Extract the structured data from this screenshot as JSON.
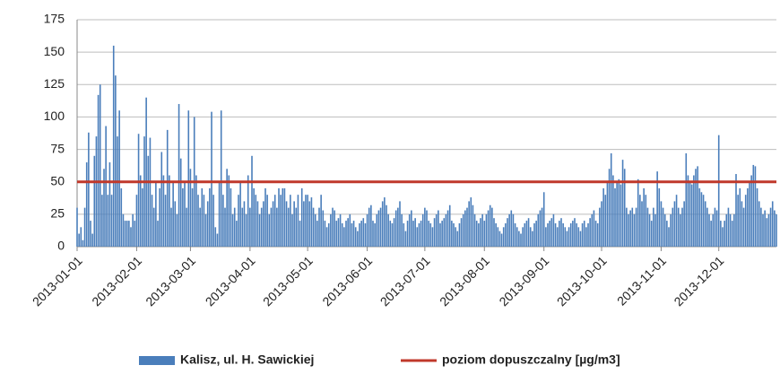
{
  "chart_data": {
    "type": "bar",
    "series": [
      {
        "name": "Kalisz, ul. H. Sawickiej",
        "color": "#4a7ebb",
        "values": [
          30,
          10,
          15,
          5,
          30,
          65,
          88,
          20,
          10,
          70,
          85,
          117,
          125,
          40,
          60,
          93,
          40,
          65,
          40,
          155,
          132,
          85,
          105,
          45,
          25,
          20,
          20,
          20,
          15,
          25,
          20,
          40,
          87,
          55,
          45,
          85,
          115,
          70,
          84,
          40,
          30,
          50,
          20,
          45,
          73,
          55,
          40,
          90,
          55,
          30,
          50,
          35,
          25,
          110,
          68,
          45,
          50,
          30,
          105,
          60,
          45,
          100,
          55,
          40,
          30,
          45,
          40,
          25,
          35,
          45,
          104,
          40,
          15,
          10,
          50,
          105,
          40,
          30,
          60,
          55,
          45,
          25,
          30,
          20,
          40,
          50,
          30,
          35,
          25,
          55,
          30,
          70,
          45,
          40,
          35,
          25,
          30,
          35,
          45,
          40,
          25,
          30,
          35,
          40,
          30,
          45,
          40,
          45,
          45,
          35,
          30,
          40,
          25,
          35,
          30,
          40,
          20,
          45,
          35,
          40,
          40,
          35,
          38,
          30,
          25,
          20,
          30,
          40,
          28,
          20,
          15,
          18,
          25,
          30,
          28,
          20,
          22,
          25,
          18,
          15,
          20,
          22,
          25,
          18,
          20,
          15,
          12,
          18,
          20,
          22,
          18,
          25,
          30,
          32,
          20,
          18,
          25,
          28,
          30,
          35,
          38,
          32,
          25,
          20,
          18,
          22,
          28,
          30,
          35,
          25,
          18,
          12,
          20,
          25,
          28,
          20,
          22,
          15,
          18,
          20,
          25,
          30,
          28,
          20,
          18,
          15,
          22,
          25,
          28,
          18,
          20,
          22,
          25,
          28,
          32,
          20,
          18,
          15,
          12,
          18,
          22,
          25,
          28,
          30,
          35,
          38,
          32,
          25,
          20,
          18,
          22,
          25,
          20,
          25,
          28,
          32,
          30,
          22,
          18,
          15,
          12,
          10,
          15,
          18,
          22,
          25,
          28,
          25,
          18,
          15,
          12,
          10,
          15,
          18,
          20,
          22,
          15,
          12,
          18,
          20,
          25,
          28,
          30,
          42,
          15,
          18,
          20,
          22,
          25,
          18,
          15,
          20,
          22,
          18,
          15,
          12,
          15,
          18,
          20,
          22,
          18,
          15,
          12,
          18,
          20,
          15,
          18,
          22,
          25,
          28,
          20,
          18,
          30,
          35,
          45,
          40,
          50,
          60,
          72,
          55,
          45,
          50,
          52,
          48,
          67,
          60,
          30,
          25,
          28,
          30,
          25,
          30,
          52,
          40,
          35,
          45,
          40,
          30,
          25,
          20,
          30,
          25,
          58,
          45,
          35,
          30,
          25,
          20,
          15,
          25,
          30,
          35,
          40,
          30,
          25,
          30,
          35,
          72,
          55,
          50,
          48,
          55,
          60,
          62,
          45,
          42,
          40,
          35,
          30,
          25,
          20,
          25,
          30,
          28,
          86,
          20,
          15,
          20,
          25,
          30,
          25,
          20,
          25,
          56,
          40,
          45,
          35,
          30,
          40,
          45,
          50,
          55,
          63,
          62,
          45,
          35,
          30,
          25,
          28,
          22,
          25,
          30,
          35,
          28,
          25
        ]
      },
      {
        "name": "poziom dopuszczalny [µg/m3]",
        "color": "#c0392b",
        "type": "hline",
        "value": 50
      }
    ],
    "x": [
      "2013-01-01",
      "2013-01-02",
      "2013-01-03",
      "2013-01-04",
      "2013-01-05",
      "2013-01-06",
      "2013-01-07",
      "2013-01-08",
      "2013-01-09",
      "2013-01-10",
      "2013-01-11",
      "2013-01-12",
      "2013-01-13",
      "2013-01-14",
      "2013-01-15",
      "2013-01-16",
      "2013-01-17",
      "2013-01-18",
      "2013-01-19",
      "2013-01-20",
      "2013-01-21",
      "2013-01-22",
      "2013-01-23",
      "2013-01-24",
      "2013-01-25",
      "2013-01-26",
      "2013-01-27",
      "2013-01-28",
      "2013-01-29",
      "2013-01-30",
      "2013-01-31",
      "2013-02-01",
      "2013-02-02",
      "2013-02-03",
      "2013-02-04",
      "2013-02-05",
      "2013-02-06",
      "2013-02-07",
      "2013-02-08",
      "2013-02-09",
      "2013-02-10",
      "2013-02-11",
      "2013-02-12",
      "2013-02-13",
      "2013-02-14",
      "2013-02-15",
      "2013-02-16",
      "2013-02-17",
      "2013-02-18",
      "2013-02-19",
      "2013-02-20",
      "2013-02-21",
      "2013-02-22",
      "2013-02-23",
      "2013-02-24",
      "2013-02-25",
      "2013-02-26",
      "2013-02-27",
      "2013-02-28",
      "2013-03-01",
      "2013-03-02",
      "2013-03-03",
      "2013-03-04",
      "2013-03-05",
      "2013-03-06",
      "2013-03-07",
      "2013-03-08",
      "2013-03-09",
      "2013-03-10",
      "2013-03-11",
      "2013-03-12",
      "2013-03-13",
      "2013-03-14",
      "2013-03-15",
      "2013-03-16",
      "2013-03-17",
      "2013-03-18",
      "2013-03-19",
      "2013-03-20",
      "2013-03-21",
      "2013-03-22",
      "2013-03-23",
      "2013-03-24",
      "2013-03-25",
      "2013-03-26",
      "2013-03-27",
      "2013-03-28",
      "2013-03-29",
      "2013-03-30",
      "2013-03-31",
      "2013-04-01",
      "2013-04-02",
      "2013-04-03",
      "2013-04-04",
      "2013-04-05",
      "2013-04-06",
      "2013-04-07",
      "2013-04-08",
      "2013-04-09",
      "2013-04-10",
      "2013-04-11",
      "2013-04-12",
      "2013-04-13",
      "2013-04-14",
      "2013-04-15",
      "2013-04-16",
      "2013-04-17",
      "2013-04-18",
      "2013-04-19",
      "2013-04-20",
      "2013-04-21",
      "2013-04-22",
      "2013-04-23",
      "2013-04-24",
      "2013-04-25",
      "2013-04-26",
      "2013-04-27",
      "2013-04-28",
      "2013-04-29",
      "2013-04-30",
      "2013-05-01",
      "2013-05-02",
      "2013-05-03",
      "2013-05-04",
      "2013-05-05",
      "2013-05-06",
      "2013-05-07",
      "2013-05-08",
      "2013-05-09",
      "2013-05-10",
      "2013-05-11",
      "2013-05-12",
      "2013-05-13",
      "2013-05-14",
      "2013-05-15",
      "2013-05-16",
      "2013-05-17",
      "2013-05-18",
      "2013-05-19",
      "2013-05-20",
      "2013-05-21",
      "2013-05-22",
      "2013-05-23",
      "2013-05-24",
      "2013-05-25",
      "2013-05-26",
      "2013-05-27",
      "2013-05-28",
      "2013-05-29",
      "2013-05-30",
      "2013-05-31",
      "2013-06-01",
      "2013-06-02",
      "2013-06-03",
      "2013-06-04",
      "2013-06-05",
      "2013-06-06",
      "2013-06-07",
      "2013-06-08",
      "2013-06-09",
      "2013-06-10",
      "2013-06-11",
      "2013-06-12",
      "2013-06-13",
      "2013-06-14",
      "2013-06-15",
      "2013-06-16",
      "2013-06-17",
      "2013-06-18",
      "2013-06-19",
      "2013-06-20",
      "2013-06-21",
      "2013-06-22",
      "2013-06-23",
      "2013-06-24",
      "2013-06-25",
      "2013-06-26",
      "2013-06-27",
      "2013-06-28",
      "2013-06-29",
      "2013-06-30",
      "2013-07-01",
      "2013-07-02",
      "2013-07-03",
      "2013-07-04",
      "2013-07-05",
      "2013-07-06",
      "2013-07-07",
      "2013-07-08",
      "2013-07-09",
      "2013-07-10",
      "2013-07-11",
      "2013-07-12",
      "2013-07-13",
      "2013-07-14",
      "2013-07-15",
      "2013-07-16",
      "2013-07-17",
      "2013-07-18",
      "2013-07-19",
      "2013-07-20",
      "2013-07-21",
      "2013-07-22",
      "2013-07-23",
      "2013-07-24",
      "2013-07-25",
      "2013-07-26",
      "2013-07-27",
      "2013-07-28",
      "2013-07-29",
      "2013-07-30",
      "2013-07-31",
      "2013-08-01",
      "2013-08-02",
      "2013-08-03",
      "2013-08-04",
      "2013-08-05",
      "2013-08-06",
      "2013-08-07",
      "2013-08-08",
      "2013-08-09",
      "2013-08-10",
      "2013-08-11",
      "2013-08-12",
      "2013-08-13",
      "2013-08-14",
      "2013-08-15",
      "2013-08-16",
      "2013-08-17",
      "2013-08-18",
      "2013-08-19",
      "2013-08-20",
      "2013-08-21",
      "2013-08-22",
      "2013-08-23",
      "2013-08-24",
      "2013-08-25",
      "2013-08-26",
      "2013-08-27",
      "2013-08-28",
      "2013-08-29",
      "2013-08-30",
      "2013-08-31",
      "2013-09-01",
      "2013-09-02",
      "2013-09-03",
      "2013-09-04",
      "2013-09-05",
      "2013-09-06",
      "2013-09-07",
      "2013-09-08",
      "2013-09-09",
      "2013-09-10",
      "2013-09-11",
      "2013-09-12",
      "2013-09-13",
      "2013-09-14",
      "2013-09-15",
      "2013-09-16",
      "2013-09-17",
      "2013-09-18",
      "2013-09-19",
      "2013-09-20",
      "2013-09-21",
      "2013-09-22",
      "2013-09-23",
      "2013-09-24",
      "2013-09-25",
      "2013-09-26",
      "2013-09-27",
      "2013-09-28",
      "2013-09-29",
      "2013-09-30",
      "2013-10-01",
      "2013-10-02",
      "2013-10-03",
      "2013-10-04",
      "2013-10-05",
      "2013-10-06",
      "2013-10-07",
      "2013-10-08",
      "2013-10-09",
      "2013-10-10",
      "2013-10-11",
      "2013-10-12",
      "2013-10-13",
      "2013-10-14",
      "2013-10-15",
      "2013-10-16",
      "2013-10-17",
      "2013-10-18",
      "2013-10-19",
      "2013-10-20",
      "2013-10-21",
      "2013-10-22",
      "2013-10-23",
      "2013-10-24",
      "2013-10-25",
      "2013-10-26",
      "2013-10-27",
      "2013-10-28",
      "2013-10-29",
      "2013-10-30",
      "2013-10-31",
      "2013-11-01",
      "2013-11-02",
      "2013-11-03",
      "2013-11-04",
      "2013-11-05",
      "2013-11-06",
      "2013-11-07",
      "2013-11-08",
      "2013-11-09",
      "2013-11-10",
      "2013-11-11",
      "2013-11-12",
      "2013-11-13",
      "2013-11-14",
      "2013-11-15",
      "2013-11-16",
      "2013-11-17",
      "2013-11-18",
      "2013-11-19",
      "2013-11-20",
      "2013-11-21",
      "2013-11-22",
      "2013-11-23",
      "2013-11-24",
      "2013-11-25",
      "2013-11-26",
      "2013-11-27",
      "2013-11-28",
      "2013-11-29",
      "2013-11-30",
      "2013-12-01",
      "2013-12-02",
      "2013-12-03",
      "2013-12-04",
      "2013-12-05",
      "2013-12-06",
      "2013-12-07",
      "2013-12-08",
      "2013-12-09",
      "2013-12-10",
      "2013-12-11",
      "2013-12-12",
      "2013-12-13",
      "2013-12-14",
      "2013-12-15",
      "2013-12-16",
      "2013-12-17",
      "2013-12-18",
      "2013-12-19",
      "2013-12-20",
      "2013-12-21",
      "2013-12-22",
      "2013-12-23",
      "2013-12-24",
      "2013-12-25",
      "2013-12-26",
      "2013-12-27",
      "2013-12-28",
      "2013-12-29",
      "2013-12-30",
      "2013-12-31"
    ],
    "xlim": [
      "2013-01-01",
      "2013-12-31"
    ],
    "xticks": [
      "2013-01-01",
      "2013-02-01",
      "2013-03-01",
      "2013-04-01",
      "2013-05-01",
      "2013-06-01",
      "2013-07-01",
      "2013-08-01",
      "2013-09-01",
      "2013-10-01",
      "2013-11-01",
      "2013-12-01"
    ],
    "ylim": [
      0,
      175
    ],
    "yticks": [
      0,
      25,
      50,
      75,
      100,
      125,
      150,
      175
    ],
    "grid": true,
    "legend": "bottom"
  }
}
